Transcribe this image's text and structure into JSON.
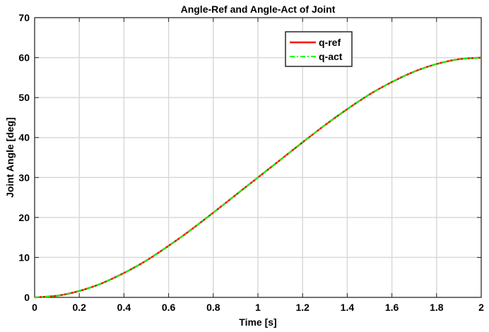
{
  "chart_data": {
    "type": "line",
    "title": "Angle-Ref and Angle-Act of Joint",
    "xlabel": "Time [s]",
    "ylabel": "Joint Angle [deg]",
    "xlim": [
      0,
      2
    ],
    "ylim": [
      0,
      70
    ],
    "xticks": [
      "0",
      "0.2",
      "0.4",
      "0.6",
      "0.8",
      "1",
      "1.2",
      "1.4",
      "1.6",
      "1.8",
      "2"
    ],
    "yticks": [
      "0",
      "10",
      "20",
      "30",
      "40",
      "50",
      "60",
      "70"
    ],
    "grid": true,
    "legend_position": "top-right",
    "x": [
      0,
      0.1,
      0.2,
      0.3,
      0.4,
      0.5,
      0.6,
      0.7,
      0.8,
      0.9,
      1.0,
      1.1,
      1.2,
      1.3,
      1.4,
      1.5,
      1.6,
      1.7,
      1.8,
      1.9,
      2.0
    ],
    "series": [
      {
        "name": "q-ref",
        "color": "#ff0000",
        "style": "solid",
        "values": [
          0,
          0.4,
          1.6,
          3.5,
          6.1,
          9.2,
          12.9,
          16.9,
          21.2,
          25.6,
          30.0,
          34.4,
          38.8,
          43.1,
          47.1,
          50.8,
          53.9,
          56.5,
          58.4,
          59.6,
          60.0
        ]
      },
      {
        "name": "q-act",
        "color": "#00ff00",
        "style": "dashdot",
        "values": [
          0,
          0.4,
          1.6,
          3.5,
          6.1,
          9.2,
          12.9,
          16.9,
          21.2,
          25.6,
          30.0,
          34.4,
          38.8,
          43.1,
          47.1,
          50.8,
          53.9,
          56.5,
          58.4,
          59.6,
          60.0
        ]
      }
    ]
  }
}
